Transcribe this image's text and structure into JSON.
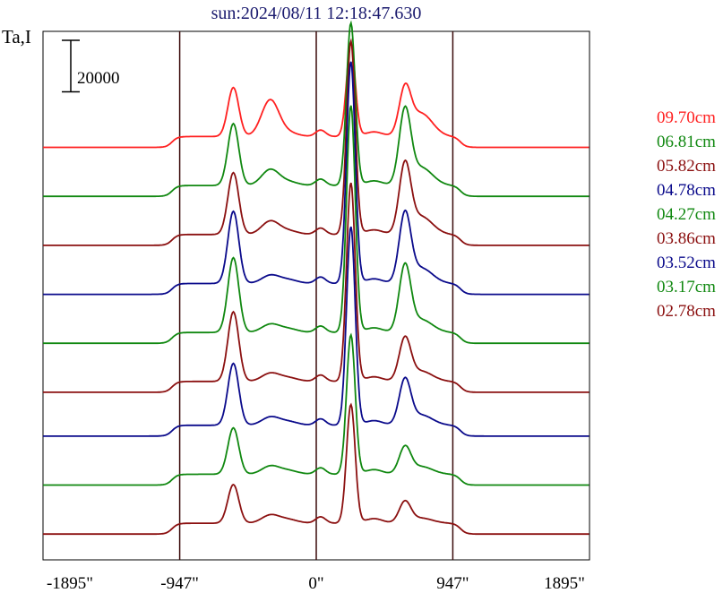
{
  "chart_data": {
    "type": "line",
    "title": "sun:2024/08/11 12:18:47.630",
    "ylabel": "Ta,I",
    "xlabel": "",
    "x_ticks": [
      "-1895\"",
      "-947\"",
      "0\"",
      "947\"",
      "1895\""
    ],
    "x_tick_values": [
      -1895,
      -947,
      0,
      947,
      1895
    ],
    "xlim": [
      -1895,
      1895
    ],
    "vertical_lines": [
      -947,
      0,
      947
    ],
    "scale_bar_label": "20000",
    "scale_bar_value": 20000,
    "series": [
      {
        "name": "09.70cm",
        "color": "#ff2020",
        "baseline": 160000,
        "p1": 19000,
        "s1": 14000,
        "p2": 36000,
        "p3": 17000,
        "sh": 9000
      },
      {
        "name": "06.81cm",
        "color": "#108810",
        "baseline": 141000,
        "p1": 24000,
        "s1": 6000,
        "p2": 63000,
        "p3": 28000,
        "sh": 7000
      },
      {
        "name": "05.82cm",
        "color": "#8b1010",
        "baseline": 122000,
        "p1": 24000,
        "s1": 5000,
        "p2": 75000,
        "p3": 26000,
        "sh": 7000
      },
      {
        "name": "04.78cm",
        "color": "#0a0a8b",
        "baseline": 103000,
        "p1": 28000,
        "s1": 3000,
        "p2": 86000,
        "p3": 26000,
        "sh": 6000
      },
      {
        "name": "04.27cm",
        "color": "#108810",
        "baseline": 84000,
        "p1": 29000,
        "s1": 3000,
        "p2": 88000,
        "p3": 25000,
        "sh": 5000
      },
      {
        "name": "03.86cm",
        "color": "#8b1010",
        "baseline": 65000,
        "p1": 27000,
        "s1": 3000,
        "p2": 77000,
        "p3": 16000,
        "sh": 4000
      },
      {
        "name": "03.52cm",
        "color": "#0a0a8b",
        "baseline": 48000,
        "p1": 24000,
        "s1": 3000,
        "p2": 77000,
        "p3": 17000,
        "sh": 4000
      },
      {
        "name": "03.17cm",
        "color": "#108810",
        "baseline": 29000,
        "p1": 18000,
        "s1": 3000,
        "p2": 54000,
        "p3": 10000,
        "sh": 3000
      },
      {
        "name": "02.78cm",
        "color": "#8b1010",
        "baseline": 10000,
        "p1": 15000,
        "s1": 3000,
        "p2": 46000,
        "p3": 8000,
        "sh": 2000
      }
    ],
    "ylim": [
      0,
      205000
    ],
    "grid": false,
    "legend": "right"
  }
}
